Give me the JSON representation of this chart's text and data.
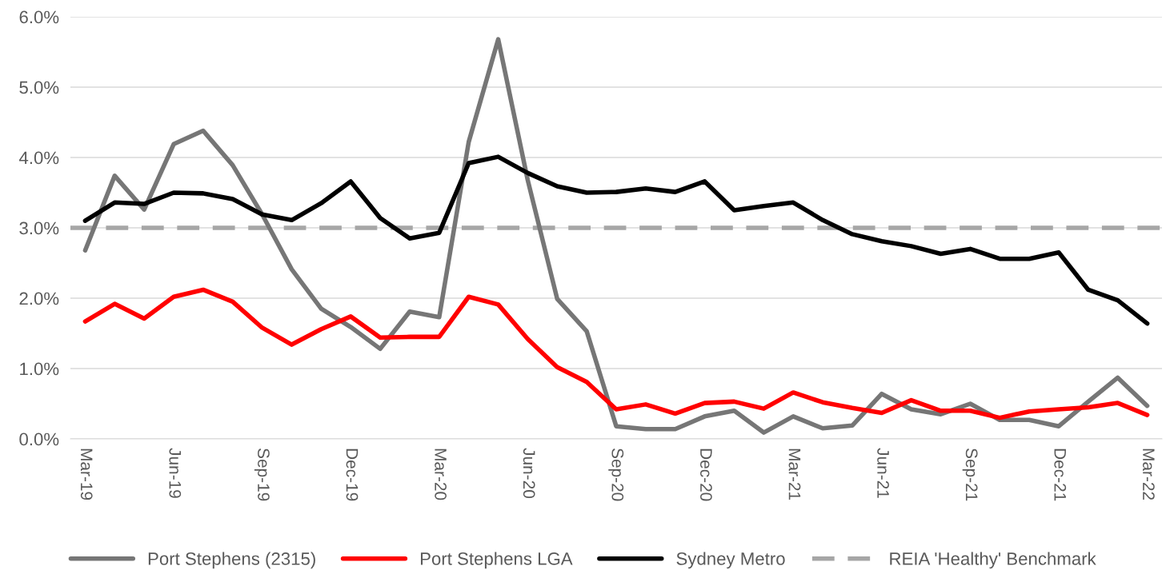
{
  "chart_data": {
    "type": "line",
    "categories": [
      "Mar-19",
      null,
      null,
      "Jun-19",
      null,
      null,
      "Sep-19",
      null,
      null,
      "Dec-19",
      null,
      null,
      "Mar-20",
      null,
      null,
      "Jun-20",
      null,
      null,
      "Sep-20",
      null,
      null,
      "Dec-20",
      null,
      null,
      "Mar-21",
      null,
      null,
      "Jun-21",
      null,
      null,
      "Sep-21",
      null,
      null,
      "Dec-21",
      null,
      null,
      "Mar-22"
    ],
    "series": [
      {
        "name": "Port Stephens (2315)",
        "color": "#767676",
        "values": [
          2.68,
          3.74,
          3.26,
          4.19,
          4.38,
          3.89,
          3.19,
          2.41,
          1.85,
          1.59,
          1.28,
          1.81,
          1.73,
          4.22,
          5.68,
          3.68,
          1.99,
          1.53,
          0.18,
          0.14,
          0.14,
          0.32,
          0.4,
          0.09,
          0.32,
          0.15,
          0.19,
          0.64,
          0.42,
          0.35,
          0.5,
          0.27,
          0.27,
          0.18,
          0.53,
          0.87,
          0.47
        ]
      },
      {
        "name": "Port Stephens LGA",
        "color": "#ff0000",
        "values": [
          1.67,
          1.92,
          1.71,
          2.02,
          2.12,
          1.95,
          1.58,
          1.34,
          1.56,
          1.74,
          1.44,
          1.45,
          1.45,
          2.02,
          1.91,
          1.42,
          1.02,
          0.81,
          0.42,
          0.49,
          0.36,
          0.51,
          0.53,
          0.43,
          0.66,
          0.52,
          0.44,
          0.37,
          0.55,
          0.4,
          0.4,
          0.3,
          0.39,
          0.42,
          0.45,
          0.51,
          0.34
        ]
      },
      {
        "name": "Sydney Metro",
        "color": "#000000",
        "values": [
          3.1,
          3.36,
          3.34,
          3.5,
          3.49,
          3.41,
          3.19,
          3.11,
          3.35,
          3.66,
          3.14,
          2.85,
          2.93,
          3.92,
          4.01,
          3.78,
          3.59,
          3.5,
          3.51,
          3.56,
          3.51,
          3.66,
          3.25,
          3.31,
          3.36,
          3.11,
          2.91,
          2.81,
          2.74,
          2.63,
          2.7,
          2.56,
          2.56,
          2.65,
          2.12,
          1.97,
          1.64
        ]
      }
    ],
    "ref_lines": [
      {
        "axis": "y",
        "value": 3.0,
        "label": "REIA 'Healthy' Benchmark",
        "color": "#a6a6a6",
        "line_style": "dashed"
      }
    ],
    "ylim": [
      0,
      6
    ],
    "yticks": [
      {
        "value": 0,
        "label": "0.0%"
      },
      {
        "value": 1,
        "label": "1.0%"
      },
      {
        "value": 2,
        "label": "2.0%"
      },
      {
        "value": 3,
        "label": "3.0%"
      },
      {
        "value": 4,
        "label": "4.0%"
      },
      {
        "value": 5,
        "label": "5.0%"
      },
      {
        "value": 6,
        "label": "6.0%"
      }
    ],
    "grid": "y",
    "legend": "bottom",
    "marker": "none",
    "line_style": "solid"
  }
}
